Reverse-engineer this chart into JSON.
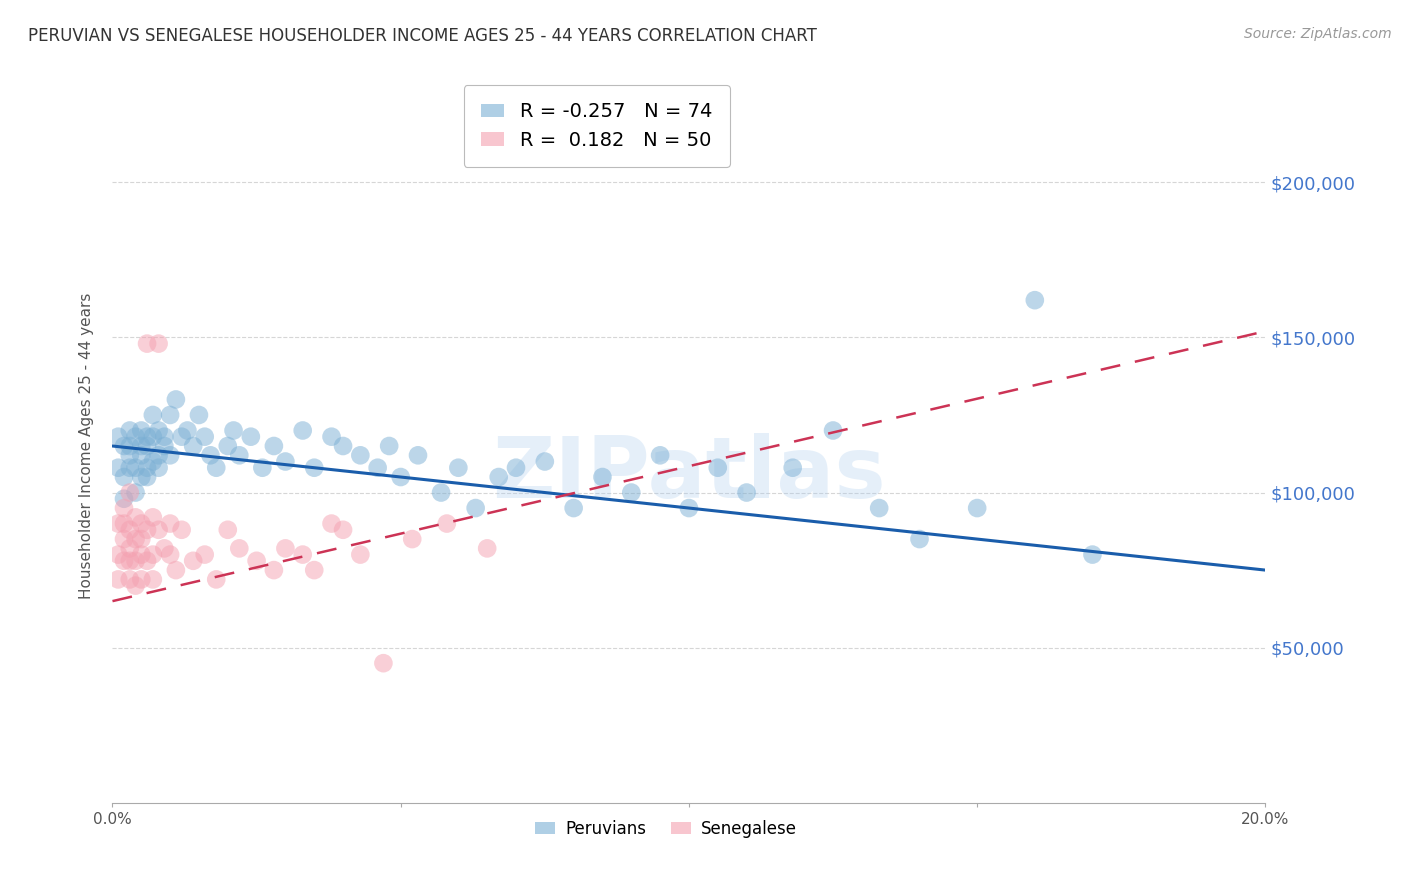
{
  "title": "PERUVIAN VS SENEGALESE HOUSEHOLDER INCOME AGES 25 - 44 YEARS CORRELATION CHART",
  "source": "Source: ZipAtlas.com",
  "ylabel": "Householder Income Ages 25 - 44 years",
  "xlim": [
    0.0,
    0.2
  ],
  "ylim": [
    0,
    230000
  ],
  "yticks": [
    0,
    50000,
    100000,
    150000,
    200000
  ],
  "ytick_labels": [
    "",
    "$50,000",
    "$100,000",
    "$150,000",
    "$200,000"
  ],
  "xticks": [
    0.0,
    0.05,
    0.1,
    0.15,
    0.2
  ],
  "xtick_labels": [
    "0.0%",
    "",
    "",
    "",
    "20.0%"
  ],
  "blue_color": "#7BAFD4",
  "pink_color": "#F4A0B0",
  "trend_blue": "#1A5DAB",
  "trend_pink": "#CC3355",
  "legend_R_blue": "-0.257",
  "legend_N_blue": "74",
  "legend_R_pink": "0.182",
  "legend_N_pink": "50",
  "watermark": "ZIPatlas",
  "peruvians_x": [
    0.001,
    0.001,
    0.002,
    0.002,
    0.002,
    0.003,
    0.003,
    0.003,
    0.003,
    0.004,
    0.004,
    0.004,
    0.005,
    0.005,
    0.005,
    0.005,
    0.006,
    0.006,
    0.006,
    0.006,
    0.007,
    0.007,
    0.007,
    0.008,
    0.008,
    0.008,
    0.009,
    0.009,
    0.01,
    0.01,
    0.011,
    0.012,
    0.013,
    0.014,
    0.015,
    0.016,
    0.017,
    0.018,
    0.02,
    0.021,
    0.022,
    0.024,
    0.026,
    0.028,
    0.03,
    0.033,
    0.035,
    0.038,
    0.04,
    0.043,
    0.046,
    0.048,
    0.05,
    0.053,
    0.057,
    0.06,
    0.063,
    0.067,
    0.07,
    0.075,
    0.08,
    0.085,
    0.09,
    0.095,
    0.1,
    0.105,
    0.11,
    0.118,
    0.125,
    0.133,
    0.14,
    0.15,
    0.16,
    0.17
  ],
  "peruvians_y": [
    118000,
    108000,
    115000,
    105000,
    98000,
    120000,
    112000,
    108000,
    115000,
    118000,
    108000,
    100000,
    120000,
    112000,
    105000,
    115000,
    118000,
    108000,
    115000,
    105000,
    125000,
    118000,
    110000,
    120000,
    112000,
    108000,
    118000,
    115000,
    125000,
    112000,
    130000,
    118000,
    120000,
    115000,
    125000,
    118000,
    112000,
    108000,
    115000,
    120000,
    112000,
    118000,
    108000,
    115000,
    110000,
    120000,
    108000,
    118000,
    115000,
    112000,
    108000,
    115000,
    105000,
    112000,
    100000,
    108000,
    95000,
    105000,
    108000,
    110000,
    95000,
    105000,
    100000,
    112000,
    95000,
    108000,
    100000,
    108000,
    120000,
    95000,
    85000,
    95000,
    162000,
    80000
  ],
  "senegalese_x": [
    0.001,
    0.001,
    0.001,
    0.002,
    0.002,
    0.002,
    0.002,
    0.003,
    0.003,
    0.003,
    0.003,
    0.003,
    0.004,
    0.004,
    0.004,
    0.004,
    0.005,
    0.005,
    0.005,
    0.005,
    0.006,
    0.006,
    0.006,
    0.007,
    0.007,
    0.007,
    0.008,
    0.008,
    0.009,
    0.01,
    0.01,
    0.011,
    0.012,
    0.014,
    0.016,
    0.018,
    0.02,
    0.022,
    0.025,
    0.028,
    0.03,
    0.033,
    0.035,
    0.038,
    0.04,
    0.043,
    0.047,
    0.052,
    0.058,
    0.065
  ],
  "senegalese_y": [
    90000,
    80000,
    72000,
    95000,
    85000,
    78000,
    90000,
    100000,
    88000,
    82000,
    78000,
    72000,
    92000,
    85000,
    78000,
    70000,
    90000,
    80000,
    72000,
    85000,
    148000,
    88000,
    78000,
    92000,
    80000,
    72000,
    148000,
    88000,
    82000,
    90000,
    80000,
    75000,
    88000,
    78000,
    80000,
    72000,
    88000,
    82000,
    78000,
    75000,
    82000,
    80000,
    75000,
    90000,
    88000,
    80000,
    45000,
    85000,
    90000,
    82000
  ]
}
